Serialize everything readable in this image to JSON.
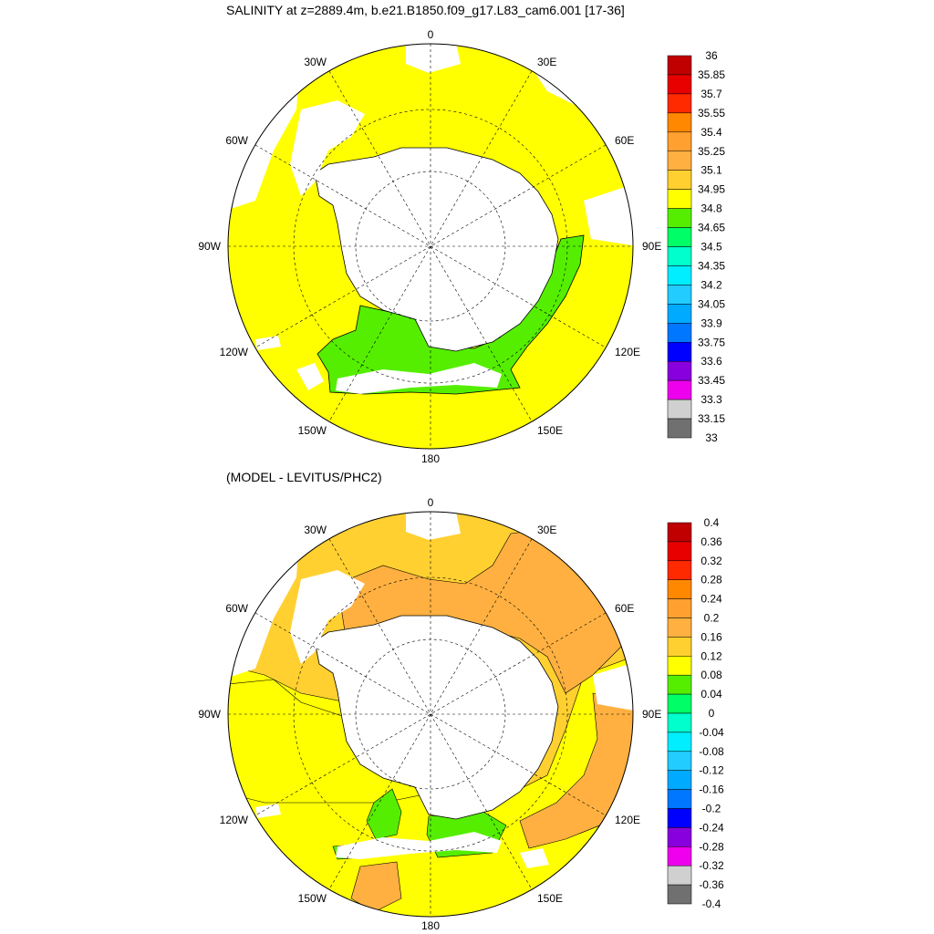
{
  "panel1": {
    "title": "SALINITY at z=2889.4m, b.e21.B1850.f09_g17.L83_cam6.001 [17-36]",
    "colorbar": {
      "labels": [
        "36",
        "35.85",
        "35.7",
        "35.55",
        "35.4",
        "35.25",
        "35.1",
        "34.95",
        "34.8",
        "34.65",
        "34.5",
        "34.35",
        "34.2",
        "34.05",
        "33.9",
        "33.75",
        "33.6",
        "33.45",
        "33.3",
        "33.15",
        "33"
      ],
      "colors": [
        "#c00000",
        "#e80000",
        "#ff2a00",
        "#ff8800",
        "#ffa030",
        "#ffb040",
        "#ffd030",
        "#ffff00",
        "#55ee00",
        "#00ff66",
        "#00ffcc",
        "#00eeff",
        "#22ccff",
        "#00aaff",
        "#0077ff",
        "#0000ff",
        "#8800dd",
        "#ee00ee",
        "#d0d0d0",
        "#707070"
      ]
    }
  },
  "panel2": {
    "title": "(MODEL - LEVITUS/PHC2)",
    "colorbar": {
      "labels": [
        "0.4",
        "0.36",
        "0.32",
        "0.28",
        "0.24",
        "0.2",
        "0.16",
        "0.12",
        "0.08",
        "0.04",
        "0",
        "-0.04",
        "-0.08",
        "-0.12",
        "-0.16",
        "-0.2",
        "-0.24",
        "-0.28",
        "-0.32",
        "-0.36",
        "-0.4"
      ],
      "colors": [
        "#c00000",
        "#e80000",
        "#ff2a00",
        "#ff8800",
        "#ffa030",
        "#ffb040",
        "#ffd030",
        "#ffff00",
        "#55ee00",
        "#00ff66",
        "#00ffcc",
        "#00eeff",
        "#22ccff",
        "#00aaff",
        "#0077ff",
        "#0000ff",
        "#8800dd",
        "#ee00ee",
        "#d0d0d0",
        "#707070"
      ]
    }
  },
  "map_labels": {
    "lon_top": "0",
    "lon_bottom": "180",
    "lon_90w": "90W",
    "lon_90e": "90E",
    "lon_30w": "30W",
    "lon_30e": "30E",
    "lon_60w": "60W",
    "lon_60e": "60E",
    "lon_120w": "120W",
    "lon_120e": "120E",
    "lon_150w": "150W",
    "lon_150e": "150E"
  },
  "legend_colors": {
    "yellow": "#ffff00",
    "green": "#55ee00",
    "orange": "#ffb040",
    "gold": "#ffd030",
    "land": "#ffffff"
  }
}
